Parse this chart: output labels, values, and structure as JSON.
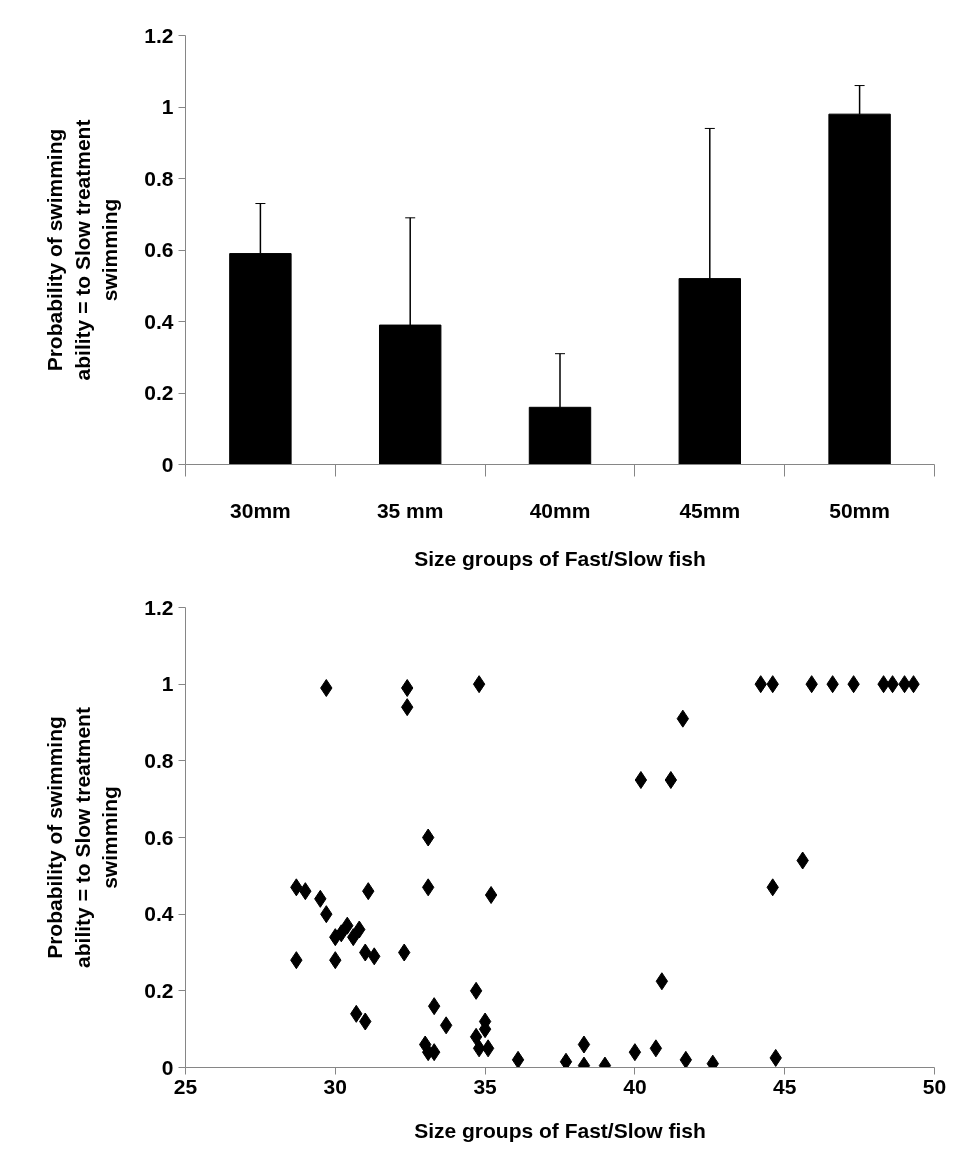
{
  "chart_data": [
    {
      "type": "bar",
      "ylabel": "Probability of swimming\nability = to Slow treatment\nswimming",
      "xlabel": "Size groups of Fast/Slow fish",
      "categories": [
        "30mm",
        "35 mm",
        "40mm",
        "45mm",
        "50mm"
      ],
      "values": [
        0.59,
        0.39,
        0.16,
        0.52,
        0.98
      ],
      "color": "#000000",
      "errors": [
        [
          0.59,
          0.73
        ],
        [
          0.39,
          0.69
        ],
        [
          0.16,
          0.31
        ],
        [
          0.52,
          0.94
        ],
        [
          0.98,
          1.06
        ]
      ],
      "ylim": [
        0,
        1.2
      ],
      "yticks": [
        0,
        0.2,
        0.4,
        0.6,
        0.8,
        1,
        1.2
      ]
    },
    {
      "type": "scatter",
      "ylabel": "Probability of swimming\nability = to Slow treatment\nswimming",
      "xlabel": "Size groups of Fast/Slow fish",
      "marker": "diamond",
      "color": "#000000",
      "x": [
        29.7,
        32.4,
        32.4,
        34.8,
        33.1,
        33.1,
        35.2,
        31.1,
        28.7,
        29.0,
        29.5,
        44.2,
        44.6,
        45.9,
        46.6,
        47.3,
        48.3,
        48.6,
        49.0,
        49.3,
        41.6,
        40.2,
        41.2,
        45.6,
        44.6,
        28.7,
        29.7,
        30.0,
        30.0,
        30.2,
        30.4,
        30.6,
        30.8,
        30.7,
        31.0,
        31.0,
        31.3,
        32.3,
        33.0,
        33.1,
        33.3,
        33.3,
        33.7,
        34.7,
        34.7,
        34.8,
        35.0,
        35.0,
        35.1,
        36.1,
        37.7,
        38.3,
        38.3,
        39.0,
        40.0,
        40.7,
        40.9,
        41.7,
        42.6,
        44.7
      ],
      "values": [
        0.99,
        0.99,
        0.94,
        1.0,
        0.6,
        0.47,
        0.45,
        0.46,
        0.47,
        0.46,
        0.44,
        1.0,
        1.0,
        1.0,
        1.0,
        1.0,
        1.0,
        1.0,
        1.0,
        1.0,
        0.91,
        0.75,
        0.75,
        0.54,
        0.47,
        0.28,
        0.4,
        0.34,
        0.28,
        0.35,
        0.37,
        0.34,
        0.36,
        0.14,
        0.12,
        0.3,
        0.29,
        0.3,
        0.06,
        0.04,
        0.16,
        0.04,
        0.11,
        0.2,
        0.08,
        0.05,
        0.1,
        0.12,
        0.05,
        0.02,
        0.015,
        0.06,
        0.005,
        0.005,
        0.04,
        0.05,
        0.225,
        0.02,
        0.01,
        0.025
      ],
      "xlim": [
        25,
        50
      ],
      "xticks": [
        25,
        30,
        35,
        40,
        45,
        50
      ],
      "ylim": [
        0,
        1.2
      ],
      "yticks": [
        0,
        0.2,
        0.4,
        0.6,
        0.8,
        1,
        1.2
      ]
    }
  ]
}
